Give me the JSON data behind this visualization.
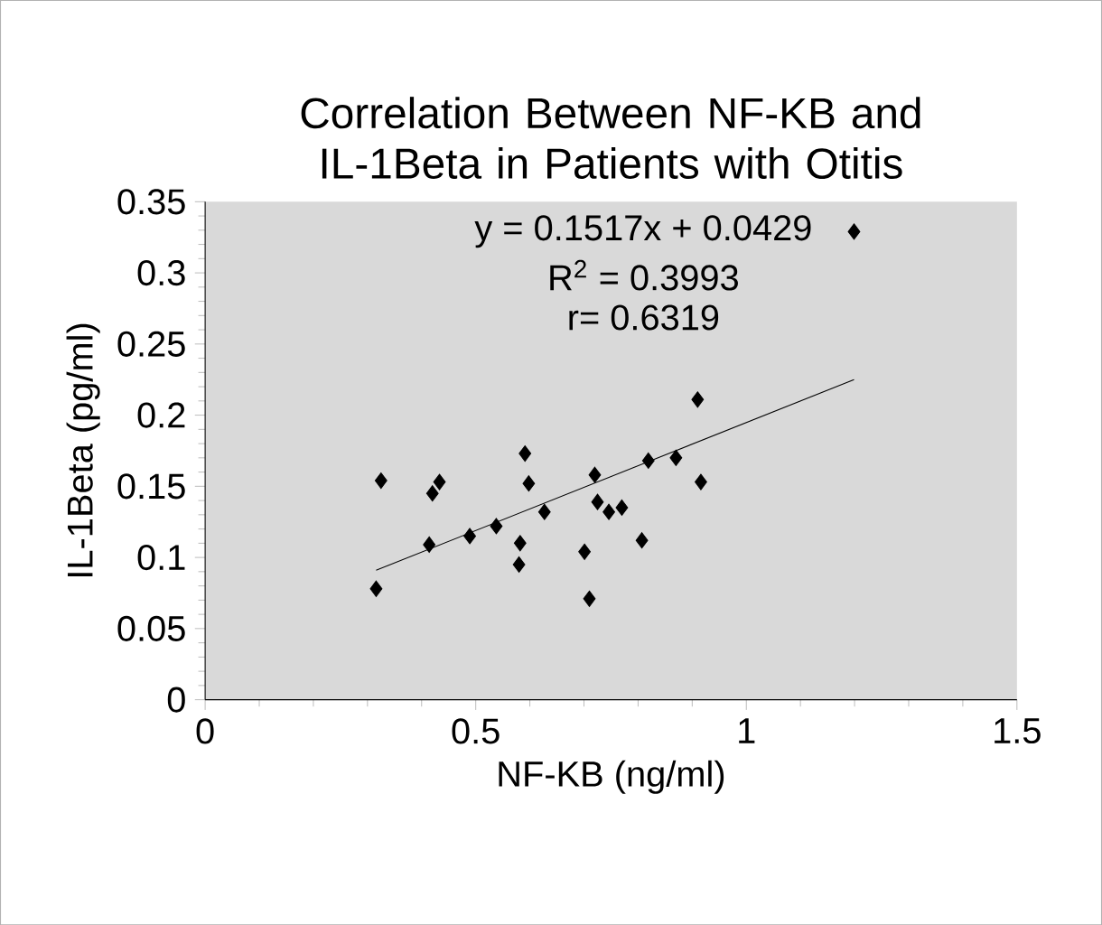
{
  "chart_data": {
    "type": "scatter",
    "title": "Correlation Between NF-KB and IL-1Beta in Patients with Otitis",
    "xlabel": "NF-KB (ng/ml)",
    "ylabel": "IL-1Beta (pg/ml)",
    "xlim": [
      0,
      1.5
    ],
    "xticks": [
      0,
      0.5,
      1,
      1.5
    ],
    "ylim": [
      0,
      0.35
    ],
    "yticks": [
      0,
      0.05,
      0.1,
      0.15,
      0.2,
      0.25,
      0.3,
      0.35
    ],
    "grid": false,
    "annotations": [
      "y = 0.1517x + 0.0429",
      "R$^{2}$ = 0.3993",
      "r= 0.6319"
    ],
    "series": [
      {
        "color": "#000000",
        "marker": "diamond",
        "x": [
          0.325,
          0.316,
          0.414,
          0.42,
          0.433,
          0.489,
          0.538,
          0.58,
          0.582,
          0.591,
          0.598,
          0.627,
          0.701,
          0.71,
          0.72,
          0.725,
          0.746,
          0.77,
          0.807,
          0.819,
          0.87,
          0.91,
          0.916,
          1.199
        ],
        "values": [
          0.154,
          0.078,
          0.109,
          0.145,
          0.153,
          0.115,
          0.122,
          0.095,
          0.11,
          0.173,
          0.152,
          0.132,
          0.104,
          0.071,
          0.158,
          0.139,
          0.132,
          0.135,
          0.112,
          0.168,
          0.17,
          0.211,
          0.153,
          0.329
        ]
      },
      {
        "type": "line",
        "marker": "none",
        "color": "#000000",
        "x": [
          0.316,
          1.199
        ],
        "values": [
          0.091,
          0.225
        ]
      }
    ]
  }
}
